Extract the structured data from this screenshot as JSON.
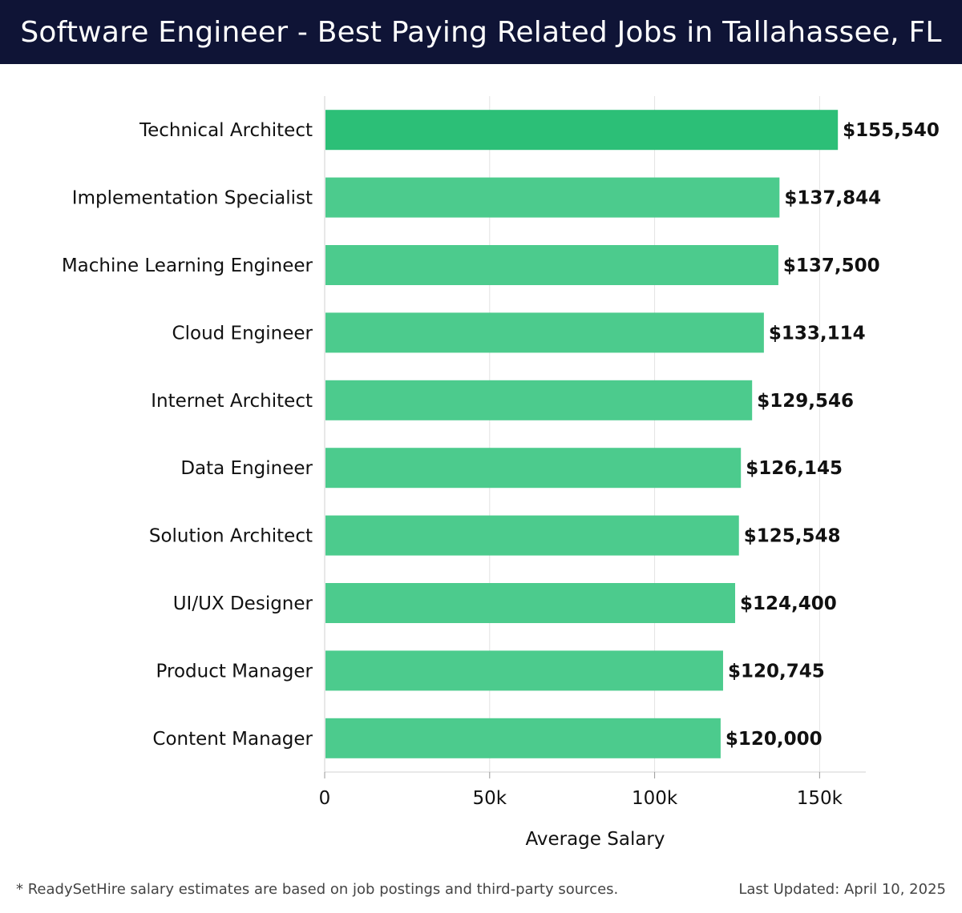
{
  "header": {
    "title": "Software Engineer - Best Paying Related Jobs in Tallahassee, FL"
  },
  "chart_data": {
    "type": "bar",
    "orientation": "horizontal",
    "categories": [
      "Technical Architect",
      "Implementation Specialist",
      "Machine Learning Engineer",
      "Cloud Engineer",
      "Internet Architect",
      "Data Engineer",
      "Solution Architect",
      "UI/UX Designer",
      "Product Manager",
      "Content Manager"
    ],
    "values": [
      155540,
      137844,
      137500,
      133114,
      129546,
      126145,
      125548,
      124400,
      120745,
      120000
    ],
    "value_labels": [
      "$155,540",
      "$137,844",
      "$137,500",
      "$133,114",
      "$129,546",
      "$126,145",
      "$125,548",
      "$124,400",
      "$120,745",
      "$120,000"
    ],
    "xlabel": "Average Salary",
    "ylabel": "",
    "xlim": [
      0,
      164000
    ],
    "xticks": [
      0,
      50000,
      100000,
      150000
    ],
    "xtick_labels": [
      "0",
      "50k",
      "100k",
      "150k"
    ],
    "grid": "vertical",
    "bar_color_top": "#2cbf77",
    "bar_color_rest": "#4ccb8d",
    "grid_color": "#e3e3e3",
    "label_color": "#111111"
  },
  "footer": {
    "note": "* ReadySetHire salary estimates are based on job postings and third-party sources.",
    "updated": "Last Updated: April 10, 2025"
  }
}
